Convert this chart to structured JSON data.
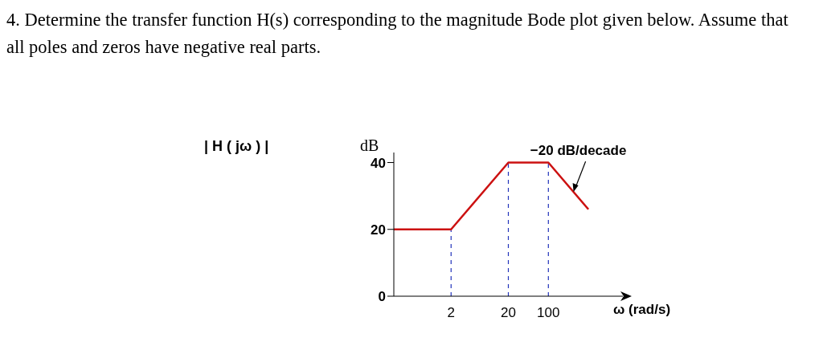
{
  "chart_data": {
    "type": "line",
    "title": "4. Determine the transfer function H(s) corresponding to the magnitude Bode plot given below. Assume that all poles and zeros have negative real parts.",
    "ylabel": "dB",
    "xlabel": "ω (rad/s)",
    "log": "x",
    "annotations": [
      "| H ( jω ) |",
      {
        "text": "−20 dB/decade",
        "x": 275,
        "y": 31.2
      }
    ],
    "series": [
      {
        "color": "#cc1111",
        "x": [
          0.2,
          2,
          20,
          100,
          500
        ],
        "values": [
          20,
          20,
          40,
          40,
          26
        ]
      }
    ],
    "xlim": [
      0.2,
      2000
    ],
    "xticks": [
      2,
      20,
      100
    ],
    "ylim": [
      0,
      43
    ],
    "yticks": [
      0,
      20,
      40
    ],
    "ref_lines": [
      {
        "axis": "x",
        "value": 2,
        "color": "#2233bb",
        "line_style": "dashed"
      },
      {
        "axis": "x",
        "value": 20,
        "color": "#2233bb",
        "line_style": "dashed"
      },
      {
        "axis": "x",
        "value": 100,
        "color": "#2233bb",
        "line_style": "dashed"
      }
    ],
    "grid": false,
    "legend": false
  }
}
